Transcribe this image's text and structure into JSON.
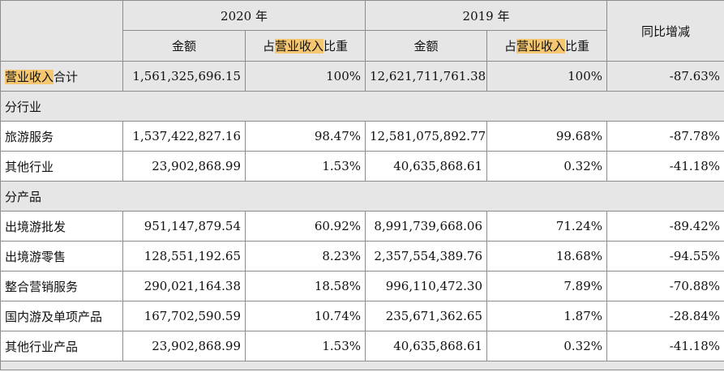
{
  "headers": {
    "year_a": "2020 年",
    "year_b": "2019 年",
    "yoy": "同比增减",
    "amount": "金额",
    "share_prefix": "占",
    "share_highlight": "营业收入",
    "share_suffix": "比重"
  },
  "total": {
    "label_highlight": "营业收入",
    "label_suffix": "合计",
    "amount_2020": "1,561,325,696.15",
    "share_2020": "100%",
    "amount_2019": "12,621,711,761.38",
    "share_2019": "100%",
    "yoy": "-87.63%"
  },
  "section_industry": "分行业",
  "industry_rows": [
    {
      "label": "旅游服务",
      "amount_2020": "1,537,422,827.16",
      "share_2020": "98.47%",
      "amount_2019": "12,581,075,892.77",
      "share_2019": "99.68%",
      "yoy": "-87.78%"
    },
    {
      "label": "其他行业",
      "amount_2020": "23,902,868.99",
      "share_2020": "1.53%",
      "amount_2019": "40,635,868.61",
      "share_2019": "0.32%",
      "yoy": "-41.18%"
    }
  ],
  "section_product": "分产品",
  "product_rows": [
    {
      "label": "出境游批发",
      "amount_2020": "951,147,879.54",
      "share_2020": "60.92%",
      "amount_2019": "8,991,739,668.06",
      "share_2019": "71.24%",
      "yoy": "-89.42%"
    },
    {
      "label": "出境游零售",
      "amount_2020": "128,551,192.65",
      "share_2020": "8.23%",
      "amount_2019": "2,357,554,389.76",
      "share_2019": "18.68%",
      "yoy": "-94.55%"
    },
    {
      "label": "整合营销服务",
      "amount_2020": "290,021,164.38",
      "share_2020": "18.58%",
      "amount_2019": "996,110,472.30",
      "share_2019": "7.89%",
      "yoy": "-70.88%"
    },
    {
      "label": "国内游及单项产品",
      "amount_2020": "167,702,590.59",
      "share_2020": "10.74%",
      "amount_2019": "235,671,362.65",
      "share_2019": "1.87%",
      "yoy": "-28.84%"
    },
    {
      "label": "其他行业产品",
      "amount_2020": "23,902,868.99",
      "share_2020": "1.53%",
      "amount_2019": "40,635,868.61",
      "share_2019": "0.32%",
      "yoy": "-41.18%"
    }
  ]
}
